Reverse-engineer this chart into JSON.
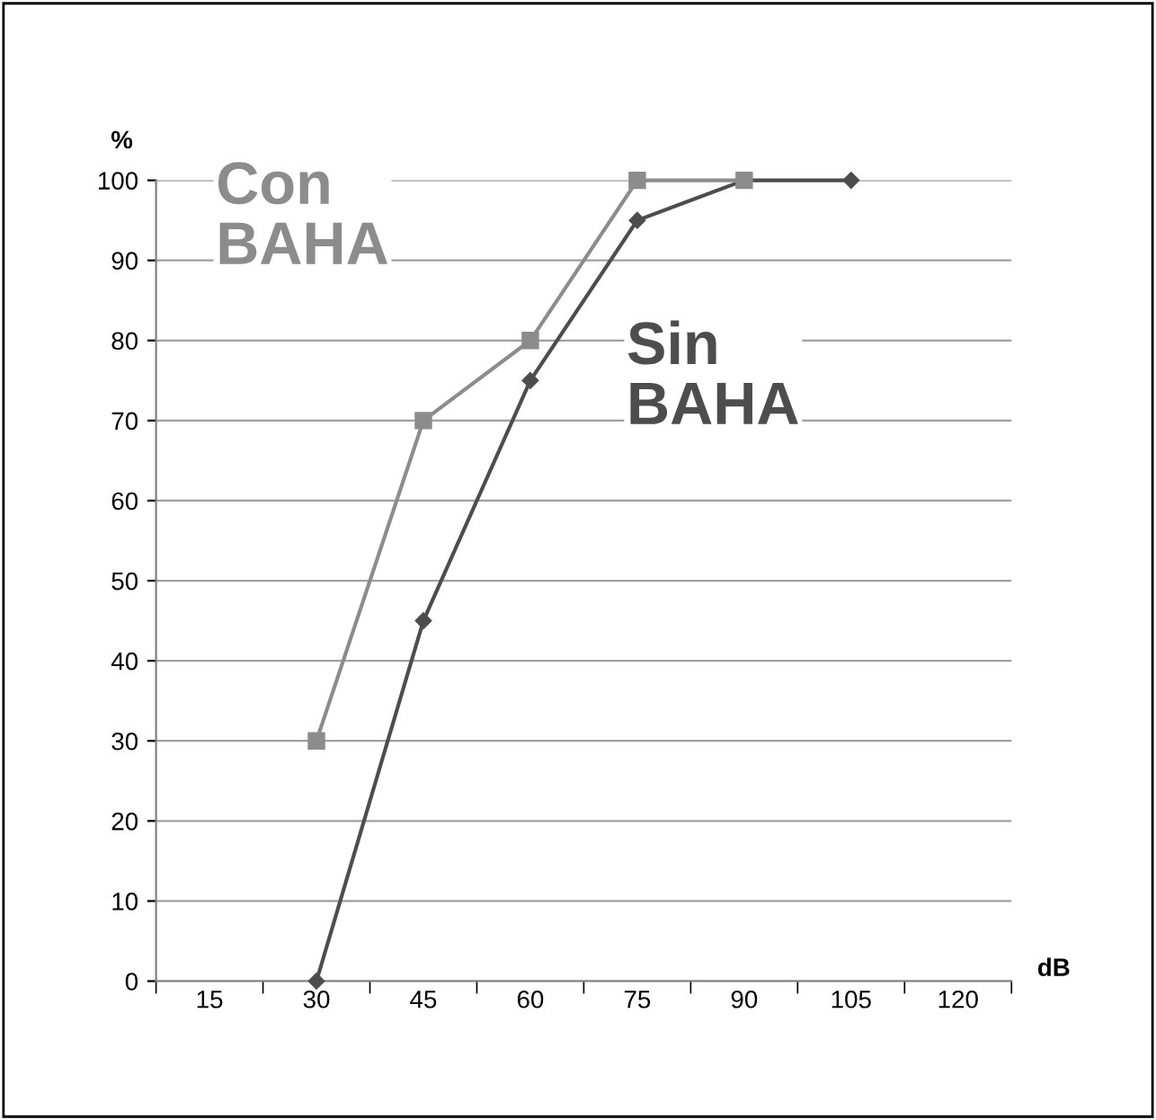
{
  "chart_data": {
    "type": "line",
    "xlabel": "dB",
    "ylabel": "%",
    "categories": [
      "15",
      "30",
      "45",
      "60",
      "75",
      "90",
      "105",
      "120"
    ],
    "series": [
      {
        "name": "Con BAHA",
        "color": "#8c8c8c",
        "marker": "square",
        "values": [
          null,
          30,
          70,
          80,
          100,
          100,
          null,
          null
        ]
      },
      {
        "name": "Sin BAHA",
        "color": "#4d4d4d",
        "marker": "diamond",
        "values": [
          null,
          0,
          45,
          75,
          95,
          100,
          100,
          null
        ]
      }
    ],
    "ylim": [
      0,
      100
    ],
    "yticks": [
      0,
      10,
      20,
      30,
      40,
      50,
      60,
      70,
      80,
      90,
      100
    ],
    "grid": "y",
    "legend": false,
    "line_style": "solid"
  }
}
